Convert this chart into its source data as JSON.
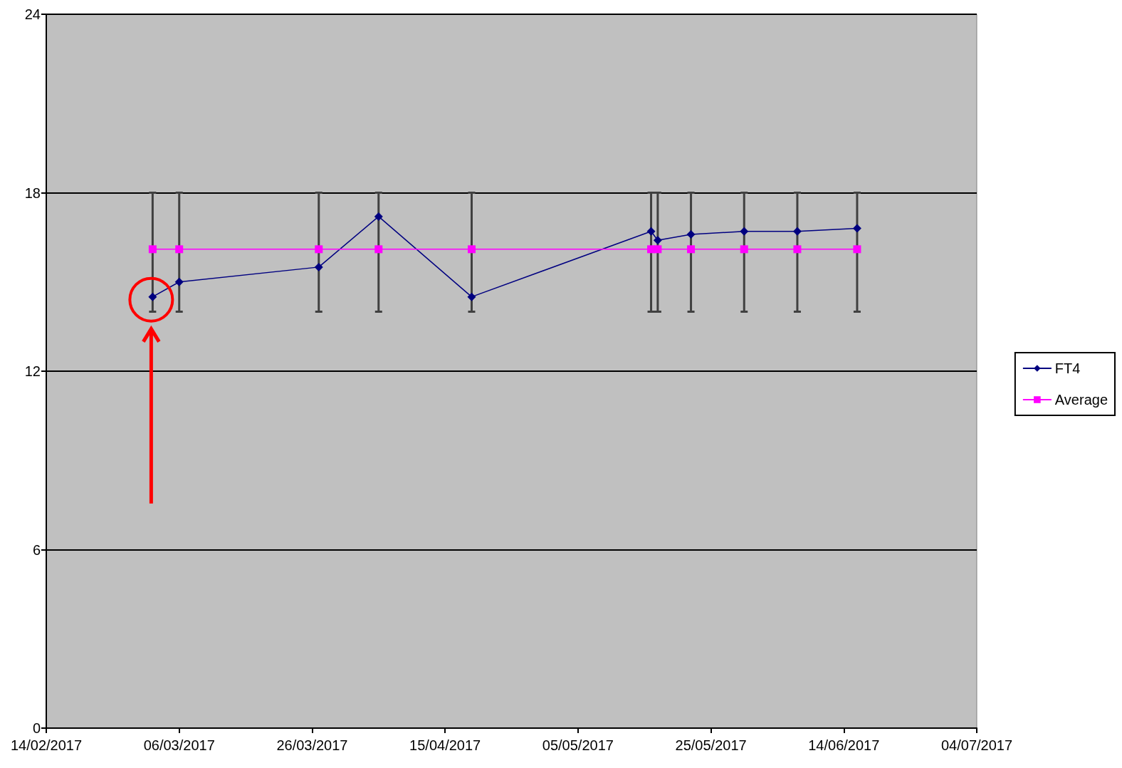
{
  "chart_data": {
    "type": "line",
    "x": [
      "2017-03-02",
      "2017-03-06",
      "2017-03-27",
      "2017-04-05",
      "2017-04-19",
      "2017-05-16",
      "2017-05-17",
      "2017-05-22",
      "2017-05-30",
      "2017-06-07",
      "2017-06-16"
    ],
    "series": [
      {
        "name": "FT4",
        "color": "#000080",
        "marker": "diamond",
        "values": [
          14.5,
          15.0,
          15.5,
          17.2,
          14.5,
          16.7,
          16.4,
          16.6,
          16.7,
          16.7,
          16.8
        ]
      },
      {
        "name": "Average",
        "color": "#ff00ff",
        "marker": "square",
        "values": [
          16.1,
          16.1,
          16.1,
          16.1,
          16.1,
          16.1,
          16.1,
          16.1,
          16.1,
          16.1,
          16.1
        ],
        "errors": [
          [
            14,
            18
          ],
          [
            14,
            18
          ],
          [
            14,
            18
          ],
          [
            14,
            18
          ],
          [
            14,
            18
          ],
          [
            14,
            18
          ],
          [
            14,
            18
          ],
          [
            14,
            18
          ],
          [
            14,
            18
          ],
          [
            14,
            18
          ],
          [
            14,
            18
          ]
        ]
      }
    ],
    "xlim": [
      "2017-02-14",
      "2017-07-04"
    ],
    "xticks": [
      {
        "value": "2017-02-14",
        "label": "14/02/2017"
      },
      {
        "value": "2017-03-06",
        "label": "06/03/2017"
      },
      {
        "value": "2017-03-26",
        "label": "26/03/2017"
      },
      {
        "value": "2017-04-15",
        "label": "15/04/2017"
      },
      {
        "value": "2017-05-05",
        "label": "05/05/2017"
      },
      {
        "value": "2017-05-25",
        "label": "25/05/2017"
      },
      {
        "value": "2017-06-14",
        "label": "14/06/2017"
      },
      {
        "value": "2017-07-04",
        "label": "04/07/2017"
      }
    ],
    "ylim": [
      0,
      24
    ],
    "yticks": [
      0,
      6,
      12,
      18,
      24
    ],
    "grid": "y",
    "legend": "right",
    "line_style": "solid"
  }
}
